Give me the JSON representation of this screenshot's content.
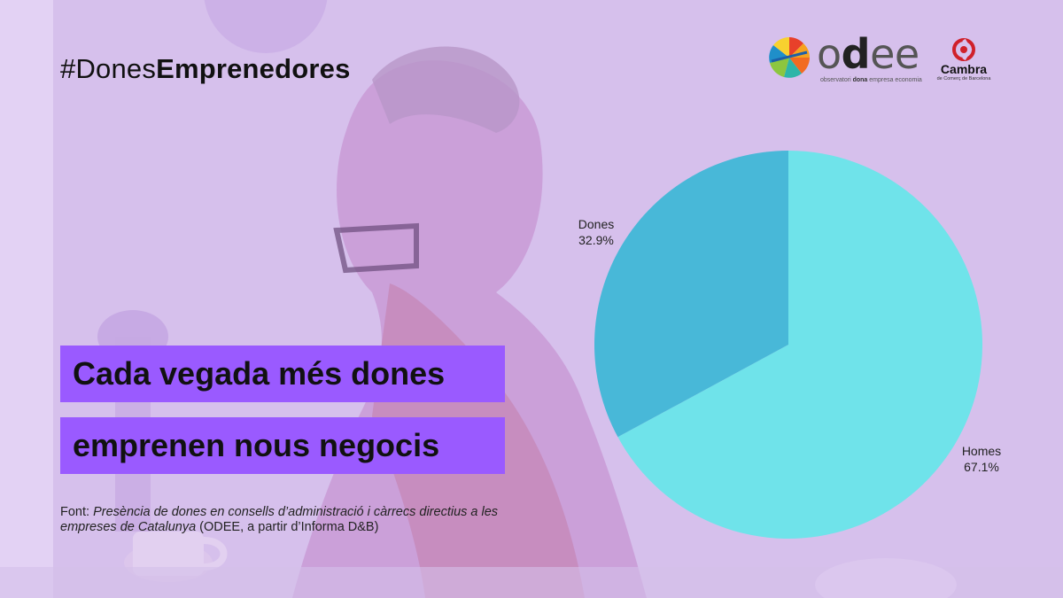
{
  "header": {
    "hashtag_prefix": "#Dones",
    "hashtag_bold": "Emprenedores"
  },
  "logos": {
    "odee": {
      "wordmark_pre": "o",
      "wordmark_bold": "d",
      "wordmark_post": "ee",
      "tagline_pre": "observatori ",
      "tagline_bold": "dona",
      "tagline_post": " empresa economia"
    },
    "cambra": {
      "wordmark": "Cambra",
      "tagline": "de Comerç de Barcelona",
      "color": "#d0202a"
    }
  },
  "headline": {
    "line1": "Cada vegada més dones",
    "line2": "emprenen nous negocis",
    "box_color": "#9a5aff"
  },
  "source": {
    "prefix": "Font: ",
    "title": "Presència de dones en consells d’administració i càrrecs directius a les empreses de Catalunya",
    "suffix": " (ODEE, a partir d’Informa D&B)"
  },
  "chart_data": {
    "type": "pie",
    "start_angle_deg": 0,
    "slices": [
      {
        "name": "Homes",
        "value": 67.1,
        "label": "67.1%",
        "color": "#6fe3ea"
      },
      {
        "name": "Dones",
        "value": 32.9,
        "label": "32.9%",
        "color": "#48b8d8"
      }
    ]
  }
}
